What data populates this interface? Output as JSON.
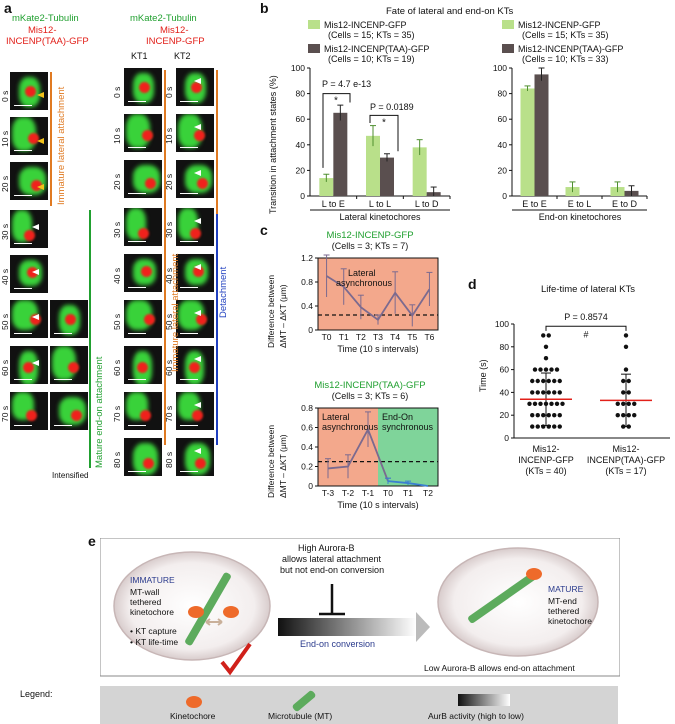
{
  "panel_a": {
    "label": "a",
    "left_header_green": "mKate2-Tubulin",
    "left_header_red_1": "Mis12-",
    "left_header_red_2": "INCENP(TAA)-GFP",
    "right_header_green": "mKate2-Tubulin",
    "right_header_red_1": "Mis12-",
    "right_header_red_2": "INCENP-GFP",
    "kt1": "KT1",
    "kt2": "KT2",
    "times": [
      "0 s",
      "10 s",
      "20 s",
      "30 s",
      "40 s",
      "50 s",
      "60 s",
      "70 s",
      "80 s"
    ],
    "left_label_immature": "Immature lateral attachment",
    "left_label_mature": "Mature end-on attachment",
    "intensified": "Intensified",
    "right_label_immature": "Immature  lateral attachment",
    "right_label_detach": "Detachment"
  },
  "panel_b": {
    "label": "b",
    "title": "Fate of lateral and end-on KTs",
    "ylabel": "Transition in attachment states (%)",
    "legend_left_1": "Mis12-INCENP-GFP",
    "legend_left_1b": "(Cells = 15; KTs = 35)",
    "legend_left_2": "Mis12-INCENP(TAA)-GFP",
    "legend_left_2b": "(Cells = 10; KTs = 19)",
    "legend_right_1": "Mis12-INCENP-GFP",
    "legend_right_1b": "(Cells = 15; KTs = 35)",
    "legend_right_2": "Mis12-INCENP(TAA)-GFP",
    "legend_right_2b": "(Cells = 10; KTs = 33)",
    "xgroup_left": "Lateral kinetochores",
    "xgroup_right": "End-on kinetochores",
    "pval1": "P = 4.7 e-13",
    "pval2": "P = 0.0189",
    "star": "*"
  },
  "panel_c": {
    "label": "c",
    "top_title": "Mis12-INCENP-GFP",
    "top_sub": "(Cells = 3; KTs = 7)",
    "top_region": "Lateral",
    "top_region_2": "asynchronous",
    "ylabel_1": "Difference between",
    "ylabel_2": "ΔMT – ΔKT (μm)",
    "xlabel": "Time (10 s intervals)",
    "bottom_title": "Mis12-INCENP(TAA)-GFP",
    "bottom_sub": "(Cells = 3; KTs = 6)",
    "bottom_region_a": "Lateral",
    "bottom_region_a2": "asynchronous",
    "bottom_region_b": "End-On",
    "bottom_region_b2": "synchronous"
  },
  "panel_d": {
    "label": "d",
    "title": "Life-time of lateral KTs",
    "pval": "P = 0.8574",
    "hash": "#",
    "ylabel": "Time (s)",
    "cat1_a": "Mis12-",
    "cat1_b": "INCENP-GFP",
    "cat1_c": "(KTs = 40)",
    "cat2_a": "Mis12-",
    "cat2_b": "INCENP(TAA)-GFP",
    "cat2_c": "(KTs = 17)"
  },
  "panel_e": {
    "label": "e",
    "high_aurora": "High Aurora-B",
    "allows_lateral": "allows lateral attachment",
    "not_endon": "but not end-on conversion",
    "immature": "IMMATURE",
    "mt_wall": "MT-wall",
    "tethered": "tethered",
    "kinetochore": "kinetochore",
    "kt_capture": "• KT capture",
    "kt_lifetime": "• KT life-time",
    "endon_conv": "End-on conversion",
    "mature": "MATURE",
    "mt_end": "MT-end",
    "tethered2": "tethered",
    "kinetochore2": "kinetochore",
    "low_aurora": "Low Aurora-B allows end-on attachment",
    "legend": "Legend:",
    "leg_kt": "Kinetochore",
    "leg_mt": "Microtubule (MT)",
    "leg_aurb": "AurB activity (high to low)"
  },
  "chart_data": [
    {
      "type": "bar",
      "panel": "b-left",
      "categories": [
        "L to E",
        "L to L",
        "L to D"
      ],
      "series": [
        {
          "name": "Mis12-INCENP-GFP",
          "values": [
            14,
            47,
            38
          ],
          "errors": [
            3,
            8,
            6
          ],
          "color": "#b9e08a"
        },
        {
          "name": "Mis12-INCENP(TAA)-GFP",
          "values": [
            65,
            30,
            3
          ],
          "errors": [
            6,
            3,
            4
          ],
          "color": "#5a4f4f"
        }
      ],
      "ylim": [
        0,
        100
      ],
      "yticks": [
        0,
        20,
        40,
        60,
        80,
        100
      ]
    },
    {
      "type": "bar",
      "panel": "b-right",
      "categories": [
        "E to E",
        "E to L",
        "E to D"
      ],
      "series": [
        {
          "name": "Mis12-INCENP-GFP",
          "values": [
            84,
            7,
            7
          ],
          "errors": [
            2,
            4,
            4
          ],
          "color": "#b9e08a"
        },
        {
          "name": "Mis12-INCENP(TAA)-GFP",
          "values": [
            95,
            0,
            4
          ],
          "errors": [
            5,
            0,
            4
          ],
          "color": "#5a4f4f"
        }
      ],
      "ylim": [
        0,
        100
      ],
      "yticks": [
        0,
        20,
        40,
        60,
        80,
        100
      ]
    },
    {
      "type": "line",
      "panel": "c-top",
      "x": [
        "T0",
        "T1",
        "T2",
        "T3",
        "T4",
        "T5",
        "T6"
      ],
      "values": [
        0.9,
        0.72,
        0.38,
        0.17,
        0.62,
        0.24,
        0.68
      ],
      "errors": [
        0.35,
        0.3,
        0.2,
        0.08,
        0.35,
        0.18,
        0.28
      ],
      "threshold": 0.25,
      "ylim": [
        0,
        1.2
      ],
      "yticks": [
        0,
        0.4,
        0.8,
        1.2
      ],
      "ytick_labels": [
        "0",
        "0.4",
        "0.8",
        "1.2"
      ],
      "color": "#7b6a8f",
      "shade": "#f3a88c"
    },
    {
      "type": "line",
      "panel": "c-bottom",
      "x": [
        "T-3",
        "T-2",
        "T-1",
        "T0",
        "T1",
        "T2"
      ],
      "values": [
        0.18,
        0.2,
        0.58,
        0.05,
        0.03,
        0.0
      ],
      "errors": [
        0.1,
        0.12,
        0.18,
        0.03,
        0.02,
        0.0
      ],
      "threshold": 0.25,
      "ylim": [
        0,
        0.8
      ],
      "yticks": [
        0,
        0.2,
        0.4,
        0.6,
        0.8
      ],
      "ytick_labels": [
        "0",
        "0.2",
        "0.4",
        "0.6",
        "0.8"
      ],
      "color_lateral": "#7b6a8f",
      "color_endon": "#3a7fd0",
      "shade_lateral": "#f3a88c",
      "shade_endon": "#7fd49a"
    },
    {
      "type": "scatter",
      "panel": "d",
      "categories": [
        "Mis12-INCENP-GFP",
        "Mis12-INCENP(TAA)-GFP"
      ],
      "group1": [
        90,
        90,
        80,
        70,
        60,
        60,
        60,
        60,
        60,
        50,
        50,
        50,
        50,
        50,
        50,
        40,
        40,
        40,
        40,
        40,
        40,
        30,
        30,
        30,
        30,
        30,
        30,
        30,
        20,
        20,
        20,
        20,
        20,
        20,
        10,
        10,
        10,
        10,
        10,
        10
      ],
      "group2": [
        90,
        80,
        60,
        50,
        50,
        40,
        40,
        30,
        30,
        30,
        30,
        20,
        20,
        20,
        20,
        10,
        10
      ],
      "mean": [
        34,
        33
      ],
      "sd": [
        23,
        23
      ],
      "ylim": [
        0,
        100
      ],
      "yticks": [
        0,
        20,
        40,
        60,
        80,
        100
      ]
    }
  ]
}
